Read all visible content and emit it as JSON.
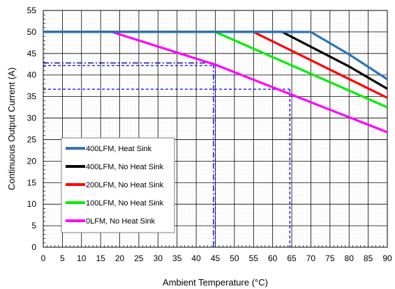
{
  "chart_data": {
    "type": "line",
    "title": "",
    "xlabel": "Ambient Temperature (°C)",
    "ylabel": "Continuous Output Current (A)",
    "xlim": [
      0,
      90
    ],
    "ylim": [
      0,
      55
    ],
    "xticks": [
      0,
      5,
      10,
      15,
      20,
      25,
      30,
      35,
      40,
      45,
      50,
      55,
      60,
      65,
      70,
      75,
      80,
      85,
      90
    ],
    "yticks": [
      0,
      5,
      10,
      15,
      20,
      25,
      30,
      35,
      40,
      45,
      50,
      55
    ],
    "grid": true,
    "legend_position": "lower-left",
    "series": [
      {
        "name": "400LFM, Heat Sink",
        "color": "#2e75b6",
        "x": [
          0,
          70,
          80,
          90
        ],
        "y": [
          50,
          50,
          44.8,
          39
        ]
      },
      {
        "name": "400LFM, No Heat Sink",
        "color": "#000000",
        "x": [
          0,
          62.5,
          80,
          90
        ],
        "y": [
          50,
          50,
          42,
          36.8
        ]
      },
      {
        "name": "200LFM, No Heat Sink",
        "color": "#ff0000",
        "x": [
          0,
          55,
          90
        ],
        "y": [
          50,
          50,
          34.7
        ]
      },
      {
        "name": "100LFM, No Heat Sink",
        "color": "#00ee00",
        "x": [
          0,
          45,
          90
        ],
        "y": [
          50,
          50,
          32.5
        ]
      },
      {
        "name": "0LFM, No Heat Sink",
        "color": "#ff00ff",
        "x": [
          0,
          18,
          45,
          90
        ],
        "y": [
          50,
          50,
          42.4,
          26.7
        ]
      }
    ],
    "reference_lines": [
      {
        "style": "dash-dot",
        "color": "#00008b",
        "x": 44.5,
        "y": 42.8
      },
      {
        "style": "dash",
        "color": "#0000ff",
        "x": 45,
        "y": 42.2
      },
      {
        "style": "dash",
        "color": "#0000ff",
        "x": 64.5,
        "y": 36.7
      }
    ]
  }
}
